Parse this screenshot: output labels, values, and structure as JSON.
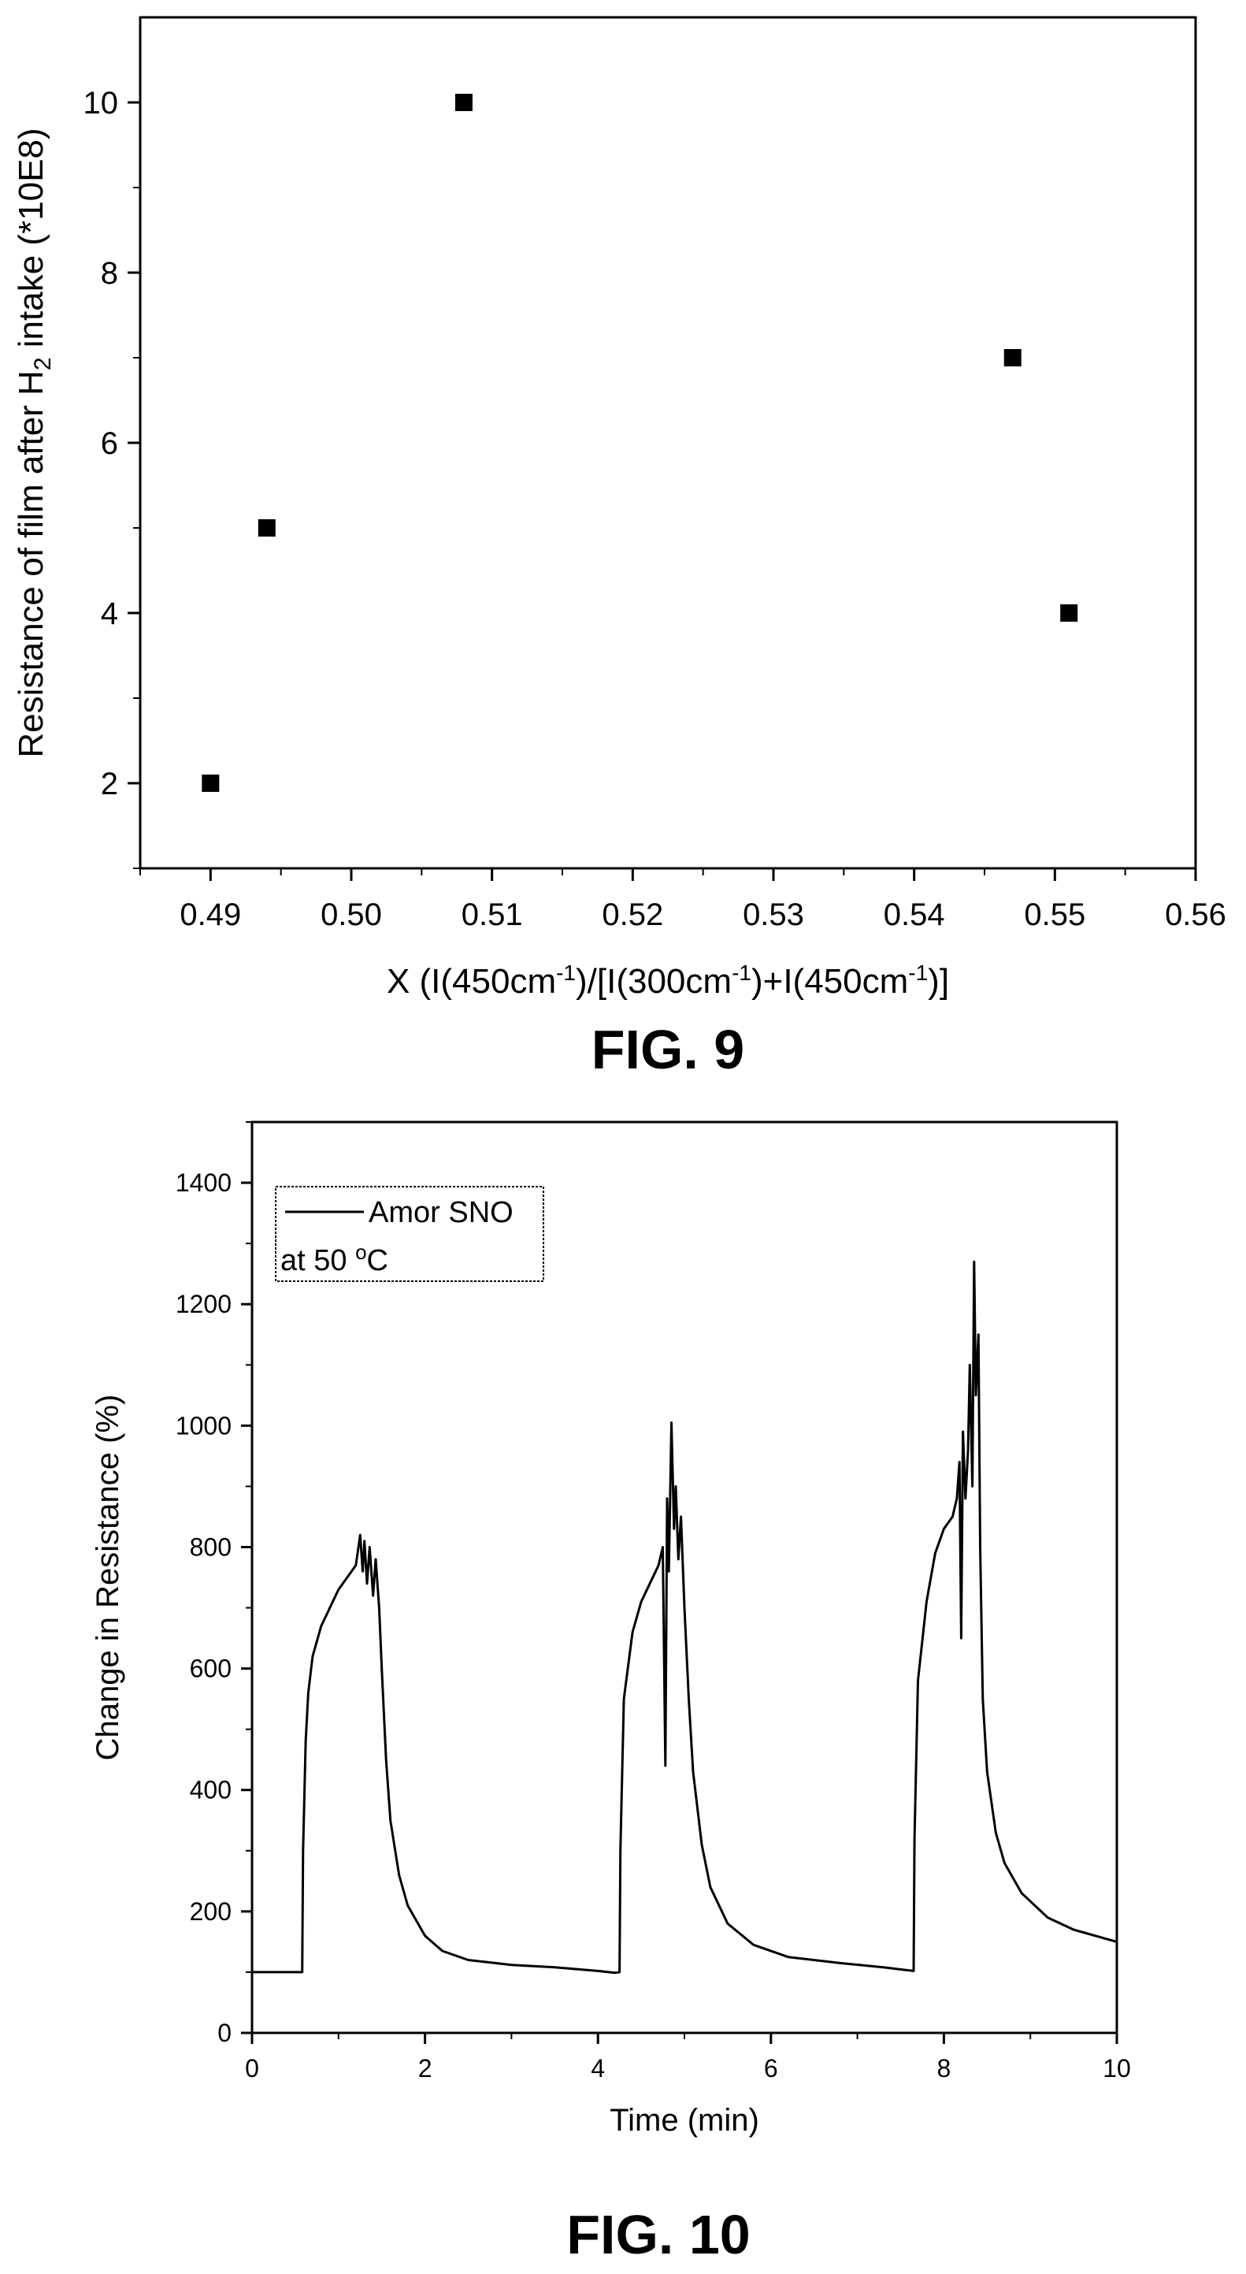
{
  "figures": [
    {
      "caption": "FIG. 9"
    },
    {
      "caption": "FIG. 10"
    }
  ],
  "chart_data": [
    {
      "type": "scatter",
      "title": "",
      "xlabel": "X (I(450cm⁻¹)/[I(300cm⁻¹)+I(450cm⁻¹)]",
      "ylabel": "Resistance of film after H₂ intake (*10E8)",
      "xlim": [
        0.485,
        0.56
      ],
      "ylim": [
        1,
        11
      ],
      "xticks": [
        0.49,
        0.5,
        0.51,
        0.52,
        0.53,
        0.54,
        0.55,
        0.56
      ],
      "xticklabels": [
        "0.49",
        "0.50",
        "0.51",
        "0.52",
        "0.53",
        "0.54",
        "0.55",
        "0.56"
      ],
      "yticks": [
        2,
        4,
        6,
        8,
        10
      ],
      "yticklabels": [
        "2",
        "4",
        "6",
        "8",
        "10"
      ],
      "grid": false,
      "marker": "square",
      "marker_color": "#000000",
      "x": [
        0.49,
        0.494,
        0.508,
        0.547,
        0.551
      ],
      "y": [
        2,
        5,
        10,
        7,
        4
      ]
    },
    {
      "type": "line",
      "title": "",
      "xlabel": "Time (min)",
      "ylabel": "Change in Resistance (%)",
      "xlim": [
        0,
        10
      ],
      "ylim": [
        0,
        1500
      ],
      "xticks": [
        0,
        2,
        4,
        6,
        8,
        10
      ],
      "xticklabels": [
        "0",
        "2",
        "4",
        "6",
        "8",
        "10"
      ],
      "yticks": [
        0,
        200,
        400,
        600,
        800,
        1000,
        1200,
        1400
      ],
      "yticklabels": [
        "0",
        "200",
        "400",
        "600",
        "800",
        "1000",
        "1200",
        "1400"
      ],
      "grid": false,
      "legend": {
        "placement": "top-left",
        "entries": [
          "Amor SNO"
        ],
        "note": "at 50 °C"
      },
      "series": [
        {
          "name": "Amor SNO",
          "color": "#000000",
          "x": [
            0,
            0.58,
            0.59,
            0.62,
            0.65,
            0.7,
            0.8,
            0.9,
            1.0,
            1.1,
            1.2,
            1.25,
            1.28,
            1.3,
            1.33,
            1.36,
            1.4,
            1.43,
            1.47,
            1.5,
            1.55,
            1.6,
            1.7,
            1.8,
            2.0,
            2.2,
            2.5,
            3.0,
            3.5,
            4.0,
            4.2,
            4.25,
            4.26,
            4.3,
            4.4,
            4.5,
            4.6,
            4.7,
            4.75,
            4.78,
            4.8,
            4.82,
            4.85,
            4.88,
            4.9,
            4.93,
            4.96,
            5.0,
            5.05,
            5.1,
            5.2,
            5.3,
            5.5,
            5.8,
            6.2,
            6.8,
            7.3,
            7.65,
            7.66,
            7.7,
            7.8,
            7.9,
            8.0,
            8.1,
            8.15,
            8.18,
            8.2,
            8.22,
            8.25,
            8.28,
            8.3,
            8.33,
            8.35,
            8.37,
            8.4,
            8.42,
            8.45,
            8.5,
            8.6,
            8.7,
            8.9,
            9.2,
            9.5,
            10.0
          ],
          "y": [
            100,
            100,
            300,
            480,
            560,
            620,
            670,
            700,
            730,
            750,
            770,
            820,
            760,
            810,
            740,
            800,
            720,
            780,
            700,
            600,
            450,
            350,
            260,
            210,
            160,
            135,
            120,
            112,
            108,
            102,
            99,
            100,
            300,
            550,
            660,
            710,
            740,
            770,
            800,
            440,
            880,
            760,
            1005,
            830,
            900,
            780,
            850,
            700,
            550,
            430,
            310,
            240,
            180,
            145,
            125,
            115,
            108,
            102,
            320,
            580,
            710,
            790,
            830,
            850,
            880,
            940,
            650,
            990,
            880,
            960,
            1100,
            900,
            1270,
            1050,
            1150,
            800,
            550,
            430,
            330,
            280,
            230,
            190,
            170,
            150
          ]
        }
      ]
    }
  ]
}
